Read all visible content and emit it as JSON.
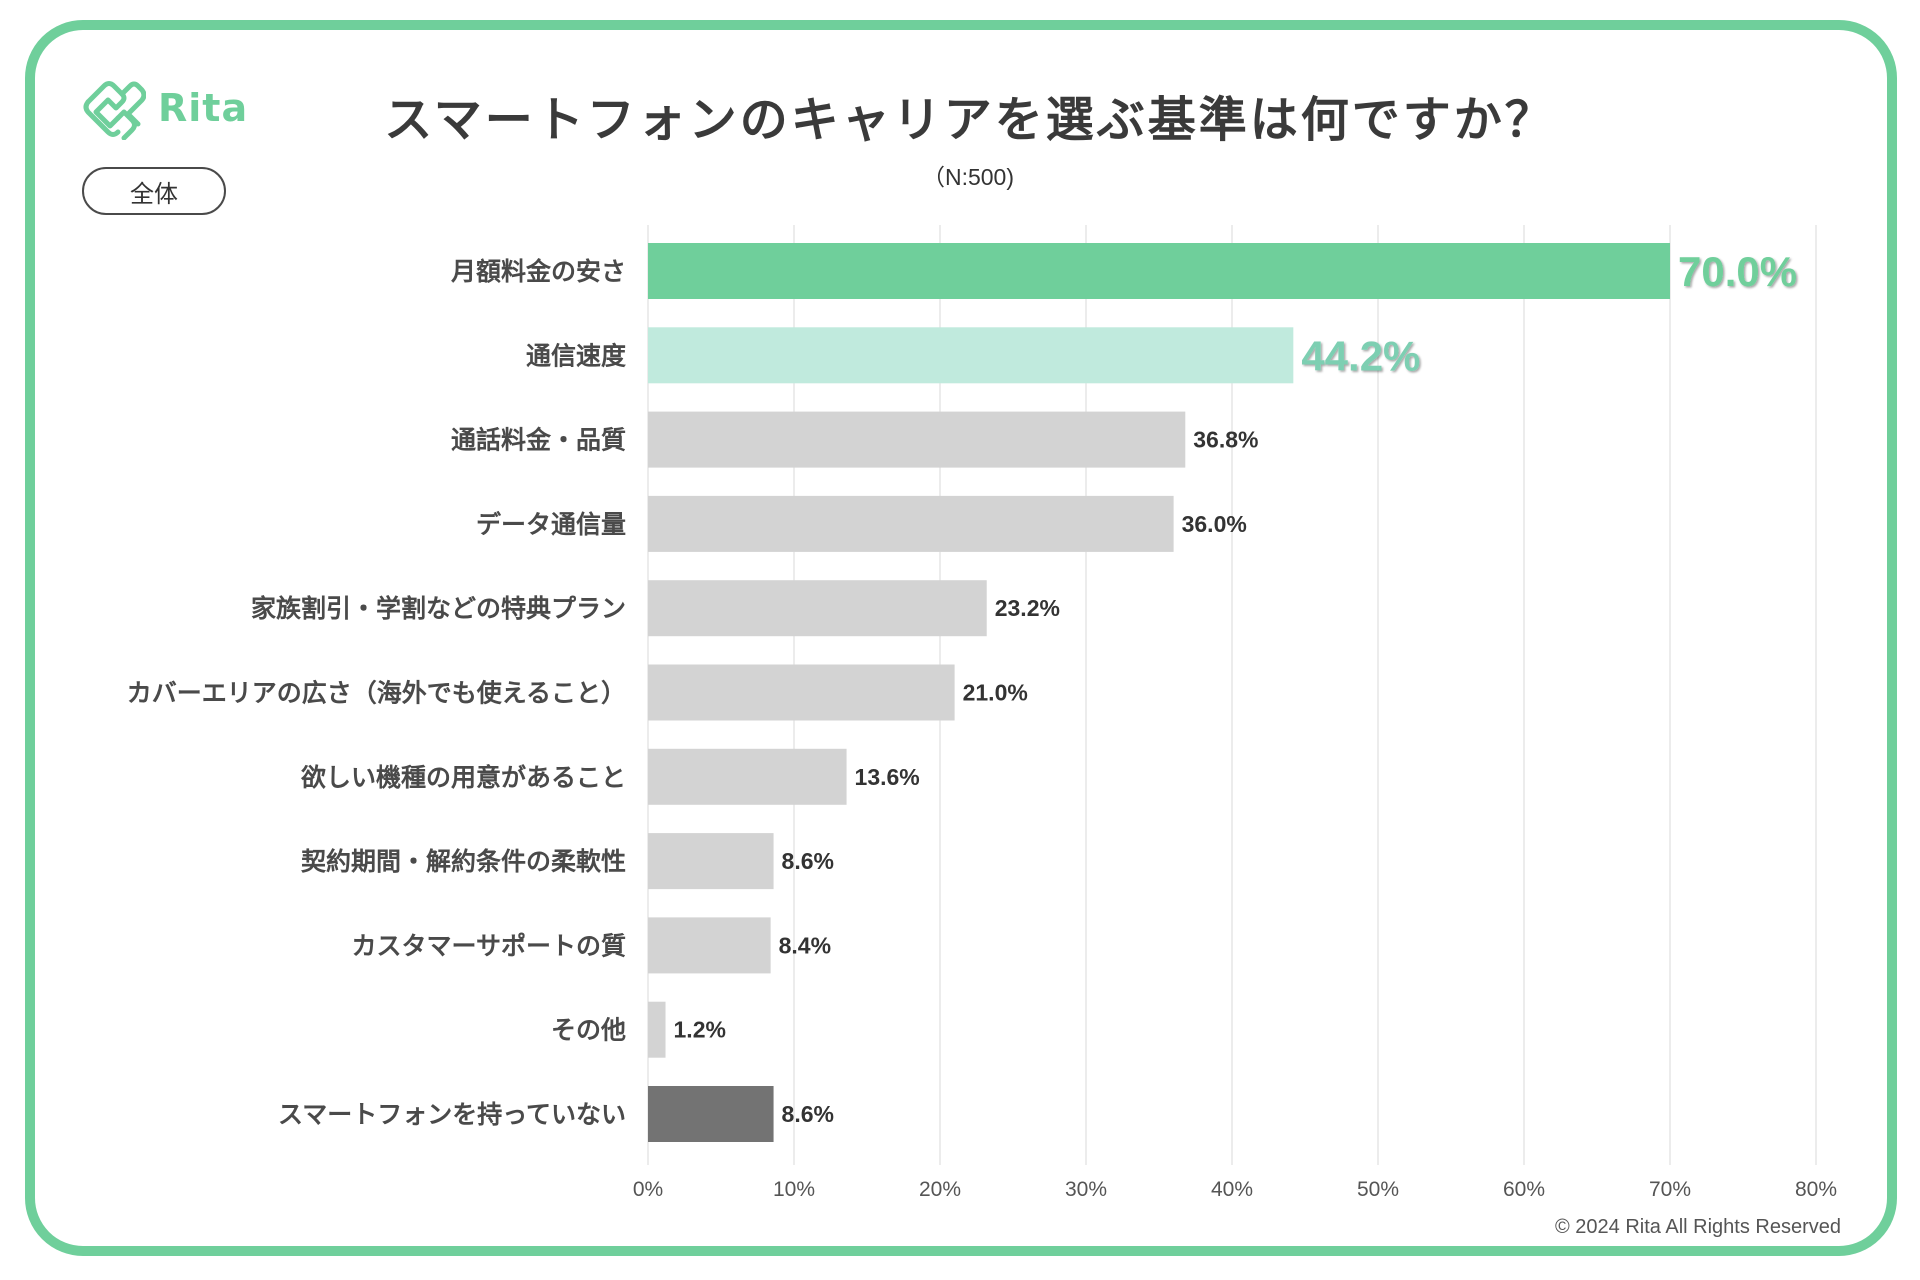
{
  "brand": {
    "name": "Rita",
    "logo_icon": "rita-logo-icon",
    "accent_color": "#6fcf9b"
  },
  "segment_label": "全体",
  "copyright": "© 2024 Rita All Rights Reserved",
  "chart_data": {
    "type": "bar",
    "orientation": "horizontal",
    "title": "スマートフォンのキャリアを選ぶ基準は何ですか？",
    "subtitle": "（N:500)",
    "xlabel": "",
    "ylabel": "",
    "xlim": [
      0,
      80
    ],
    "grid": true,
    "x_ticks": [
      "0%",
      "10%",
      "20%",
      "30%",
      "40%",
      "50%",
      "60%",
      "70%",
      "80%"
    ],
    "x_tick_values": [
      0,
      10,
      20,
      30,
      40,
      50,
      60,
      70,
      80
    ],
    "categories": [
      "月額料金の安さ",
      "通信速度",
      "通話料金・品質",
      "データ通信量",
      "家族割引・学割などの特典プラン",
      "カバーエリアの広さ（海外でも使えること）",
      "欲しい機種の用意があること",
      "契約期間・解約条件の柔軟性",
      "カスタマーサポートの質",
      "その他",
      "スマートフォンを持っていない"
    ],
    "values": [
      70.0,
      44.2,
      36.8,
      36.0,
      23.2,
      21.0,
      13.6,
      8.6,
      8.4,
      1.2,
      8.6
    ],
    "value_labels": [
      "70.0%",
      "44.2%",
      "36.8%",
      "36.0%",
      "23.2%",
      "21.0%",
      "13.6%",
      "8.6%",
      "8.4%",
      "1.2%",
      "8.6%"
    ],
    "bar_colors": [
      "#6fcf9b",
      "#c0eadd",
      "#d3d3d3",
      "#d3d3d3",
      "#d3d3d3",
      "#d3d3d3",
      "#d3d3d3",
      "#d3d3d3",
      "#d3d3d3",
      "#d3d3d3",
      "#737373"
    ],
    "label_styles": [
      "highlight-1",
      "highlight-2",
      "normal",
      "normal",
      "normal",
      "normal",
      "normal",
      "normal",
      "normal",
      "normal",
      "normal"
    ],
    "highlight_label_colors": {
      "highlight-1": "#6fcf9b",
      "highlight-2": "#7dcfb2"
    },
    "normal_label_color": "#333333",
    "legend": "none"
  }
}
